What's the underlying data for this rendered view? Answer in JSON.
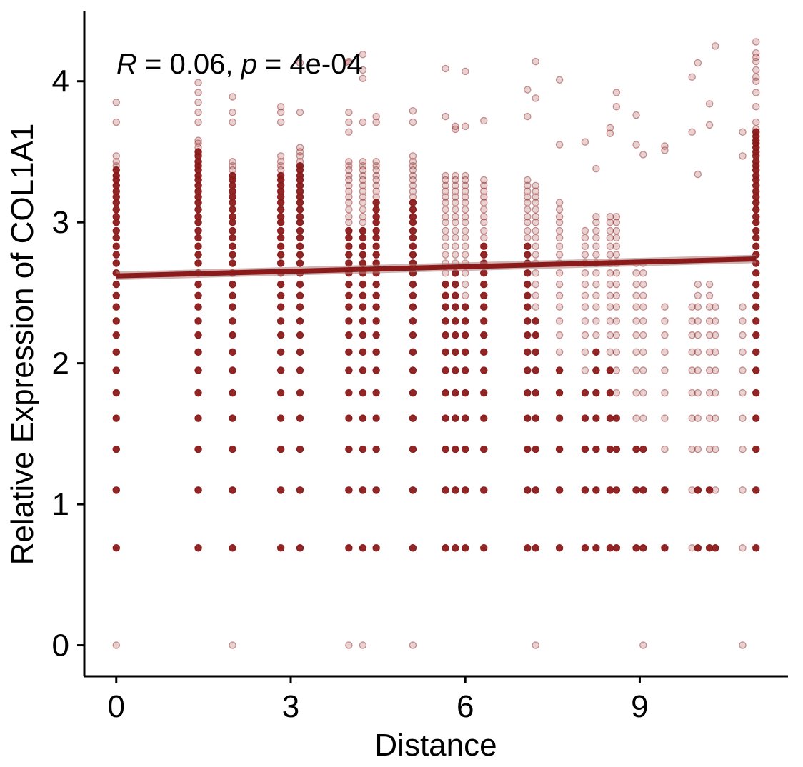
{
  "chart_data": {
    "type": "scatter",
    "xlabel": "Distance",
    "ylabel": "Relative Expression of COL1A1",
    "xlim": [
      -0.55,
      11.55
    ],
    "ylim": [
      -0.22,
      4.5
    ],
    "x_ticks": [
      0,
      3,
      6,
      9
    ],
    "y_ticks": [
      0,
      1,
      2,
      3,
      4
    ],
    "grid": false,
    "annotation": {
      "r_symbol": "R",
      "r_text": " = 0.06, ",
      "p_symbol": "p",
      "p_text": " = 4e-04"
    },
    "colors": {
      "points": "#8B1A1A",
      "line": "#8B1A1A",
      "band": "#b08080"
    },
    "y_levels": [
      0,
      0.69,
      1.1,
      1.39,
      1.61,
      1.79,
      1.95,
      2.08,
      2.2,
      2.3,
      2.4,
      2.48,
      2.56,
      2.64,
      2.71,
      2.77,
      2.83,
      2.89,
      2.94,
      3.0,
      3.04,
      3.09,
      3.14,
      3.18,
      3.22,
      3.26,
      3.3,
      3.33,
      3.37,
      3.4,
      3.43,
      3.47,
      3.5,
      3.53,
      3.56,
      3.58,
      3.61,
      3.64,
      3.66
    ],
    "fit_line": {
      "x": [
        0,
        11
      ],
      "y": [
        2.62,
        2.74
      ],
      "band": 0.03
    },
    "columns": [
      {
        "x": 0,
        "n": 31,
        "strong": 28,
        "extra": [
          3.71,
          3.85
        ],
        "zero": true
      },
      {
        "x": 1.41,
        "n": 35,
        "strong": 32,
        "extra": [
          3.71,
          3.78,
          3.85,
          3.92,
          3.99
        ]
      },
      {
        "x": 2.0,
        "n": 30,
        "strong": 27,
        "extra": [
          3.71,
          3.78,
          3.89
        ],
        "zero": true
      },
      {
        "x": 2.83,
        "n": 31,
        "strong": 27,
        "extra": [
          3.71,
          3.78,
          3.82
        ]
      },
      {
        "x": 3.16,
        "n": 33,
        "strong": 29,
        "extra": [
          3.78,
          4.13
        ]
      },
      {
        "x": 4.0,
        "n": 30,
        "strong": 18,
        "extra": [
          3.64,
          3.71,
          3.78,
          4.13,
          4.14
        ],
        "zero": true
      },
      {
        "x": 4.24,
        "n": 30,
        "strong": 18,
        "extra": [
          3.71,
          4.02,
          4.08,
          4.19
        ],
        "zero": true
      },
      {
        "x": 4.47,
        "n": 30,
        "strong": 22,
        "extra": [
          3.71,
          3.75
        ]
      },
      {
        "x": 5.1,
        "n": 31,
        "strong": 22,
        "extra": [
          3.71,
          3.79
        ],
        "zero": true
      },
      {
        "x": 5.66,
        "n": 27,
        "strong": 12,
        "extra": [
          3.75,
          4.09
        ]
      },
      {
        "x": 5.83,
        "n": 27,
        "strong": 13,
        "extra": [
          3.66,
          3.68
        ]
      },
      {
        "x": 6.0,
        "n": 27,
        "strong": 10,
        "extra": [
          3.68,
          4.07
        ]
      },
      {
        "x": 6.32,
        "n": 26,
        "strong": 16,
        "extra": [
          3.72
        ]
      },
      {
        "x": 7.07,
        "n": 26,
        "strong": 16,
        "extra": [
          3.75,
          3.94
        ]
      },
      {
        "x": 7.21,
        "n": 25,
        "strong": 9,
        "extra": [
          3.88,
          4.14
        ],
        "zero": true
      },
      {
        "x": 7.62,
        "n": 22,
        "strong": 6,
        "extra": [
          3.55,
          4.01
        ]
      },
      {
        "x": 8.06,
        "n": 18,
        "strong": 5,
        "extra": [
          3.57
        ]
      },
      {
        "x": 8.25,
        "n": 20,
        "strong": 7,
        "extra": [
          3.38
        ]
      },
      {
        "x": 8.49,
        "n": 20,
        "strong": 6,
        "extra": [
          3.63,
          3.67
        ]
      },
      {
        "x": 8.6,
        "n": 20,
        "strong": 4,
        "extra": [
          3.82,
          3.92
        ]
      },
      {
        "x": 8.94,
        "n": 14,
        "strong": 3,
        "extra": [
          3.55,
          3.76
        ]
      },
      {
        "x": 9.06,
        "n": 14,
        "strong": 3,
        "extra": [
          3.48
        ],
        "zero": true
      },
      {
        "x": 9.43,
        "n": 10,
        "strong": 2,
        "extra": [
          3.51,
          3.54
        ]
      },
      {
        "x": 9.9,
        "n": 10,
        "strong": 0,
        "extra": [
          3.64,
          4.03
        ]
      },
      {
        "x": 10.0,
        "n": 12,
        "strong": 2,
        "extra": [
          3.34,
          4.13
        ]
      },
      {
        "x": 10.2,
        "n": 12,
        "strong": 2,
        "extra": [
          3.69,
          3.84
        ]
      },
      {
        "x": 10.3,
        "n": 10,
        "strong": 1,
        "extra": [
          4.25
        ]
      },
      {
        "x": 10.77,
        "n": 10,
        "strong": 0,
        "extra": [
          3.47,
          3.64
        ],
        "zero": true
      },
      {
        "x": 11.0,
        "n": 39,
        "strong": 37,
        "extra": [
          3.71,
          3.82,
          3.92,
          4.0,
          4.03,
          4.08,
          4.14,
          4.17,
          4.2,
          4.28
        ]
      }
    ]
  }
}
